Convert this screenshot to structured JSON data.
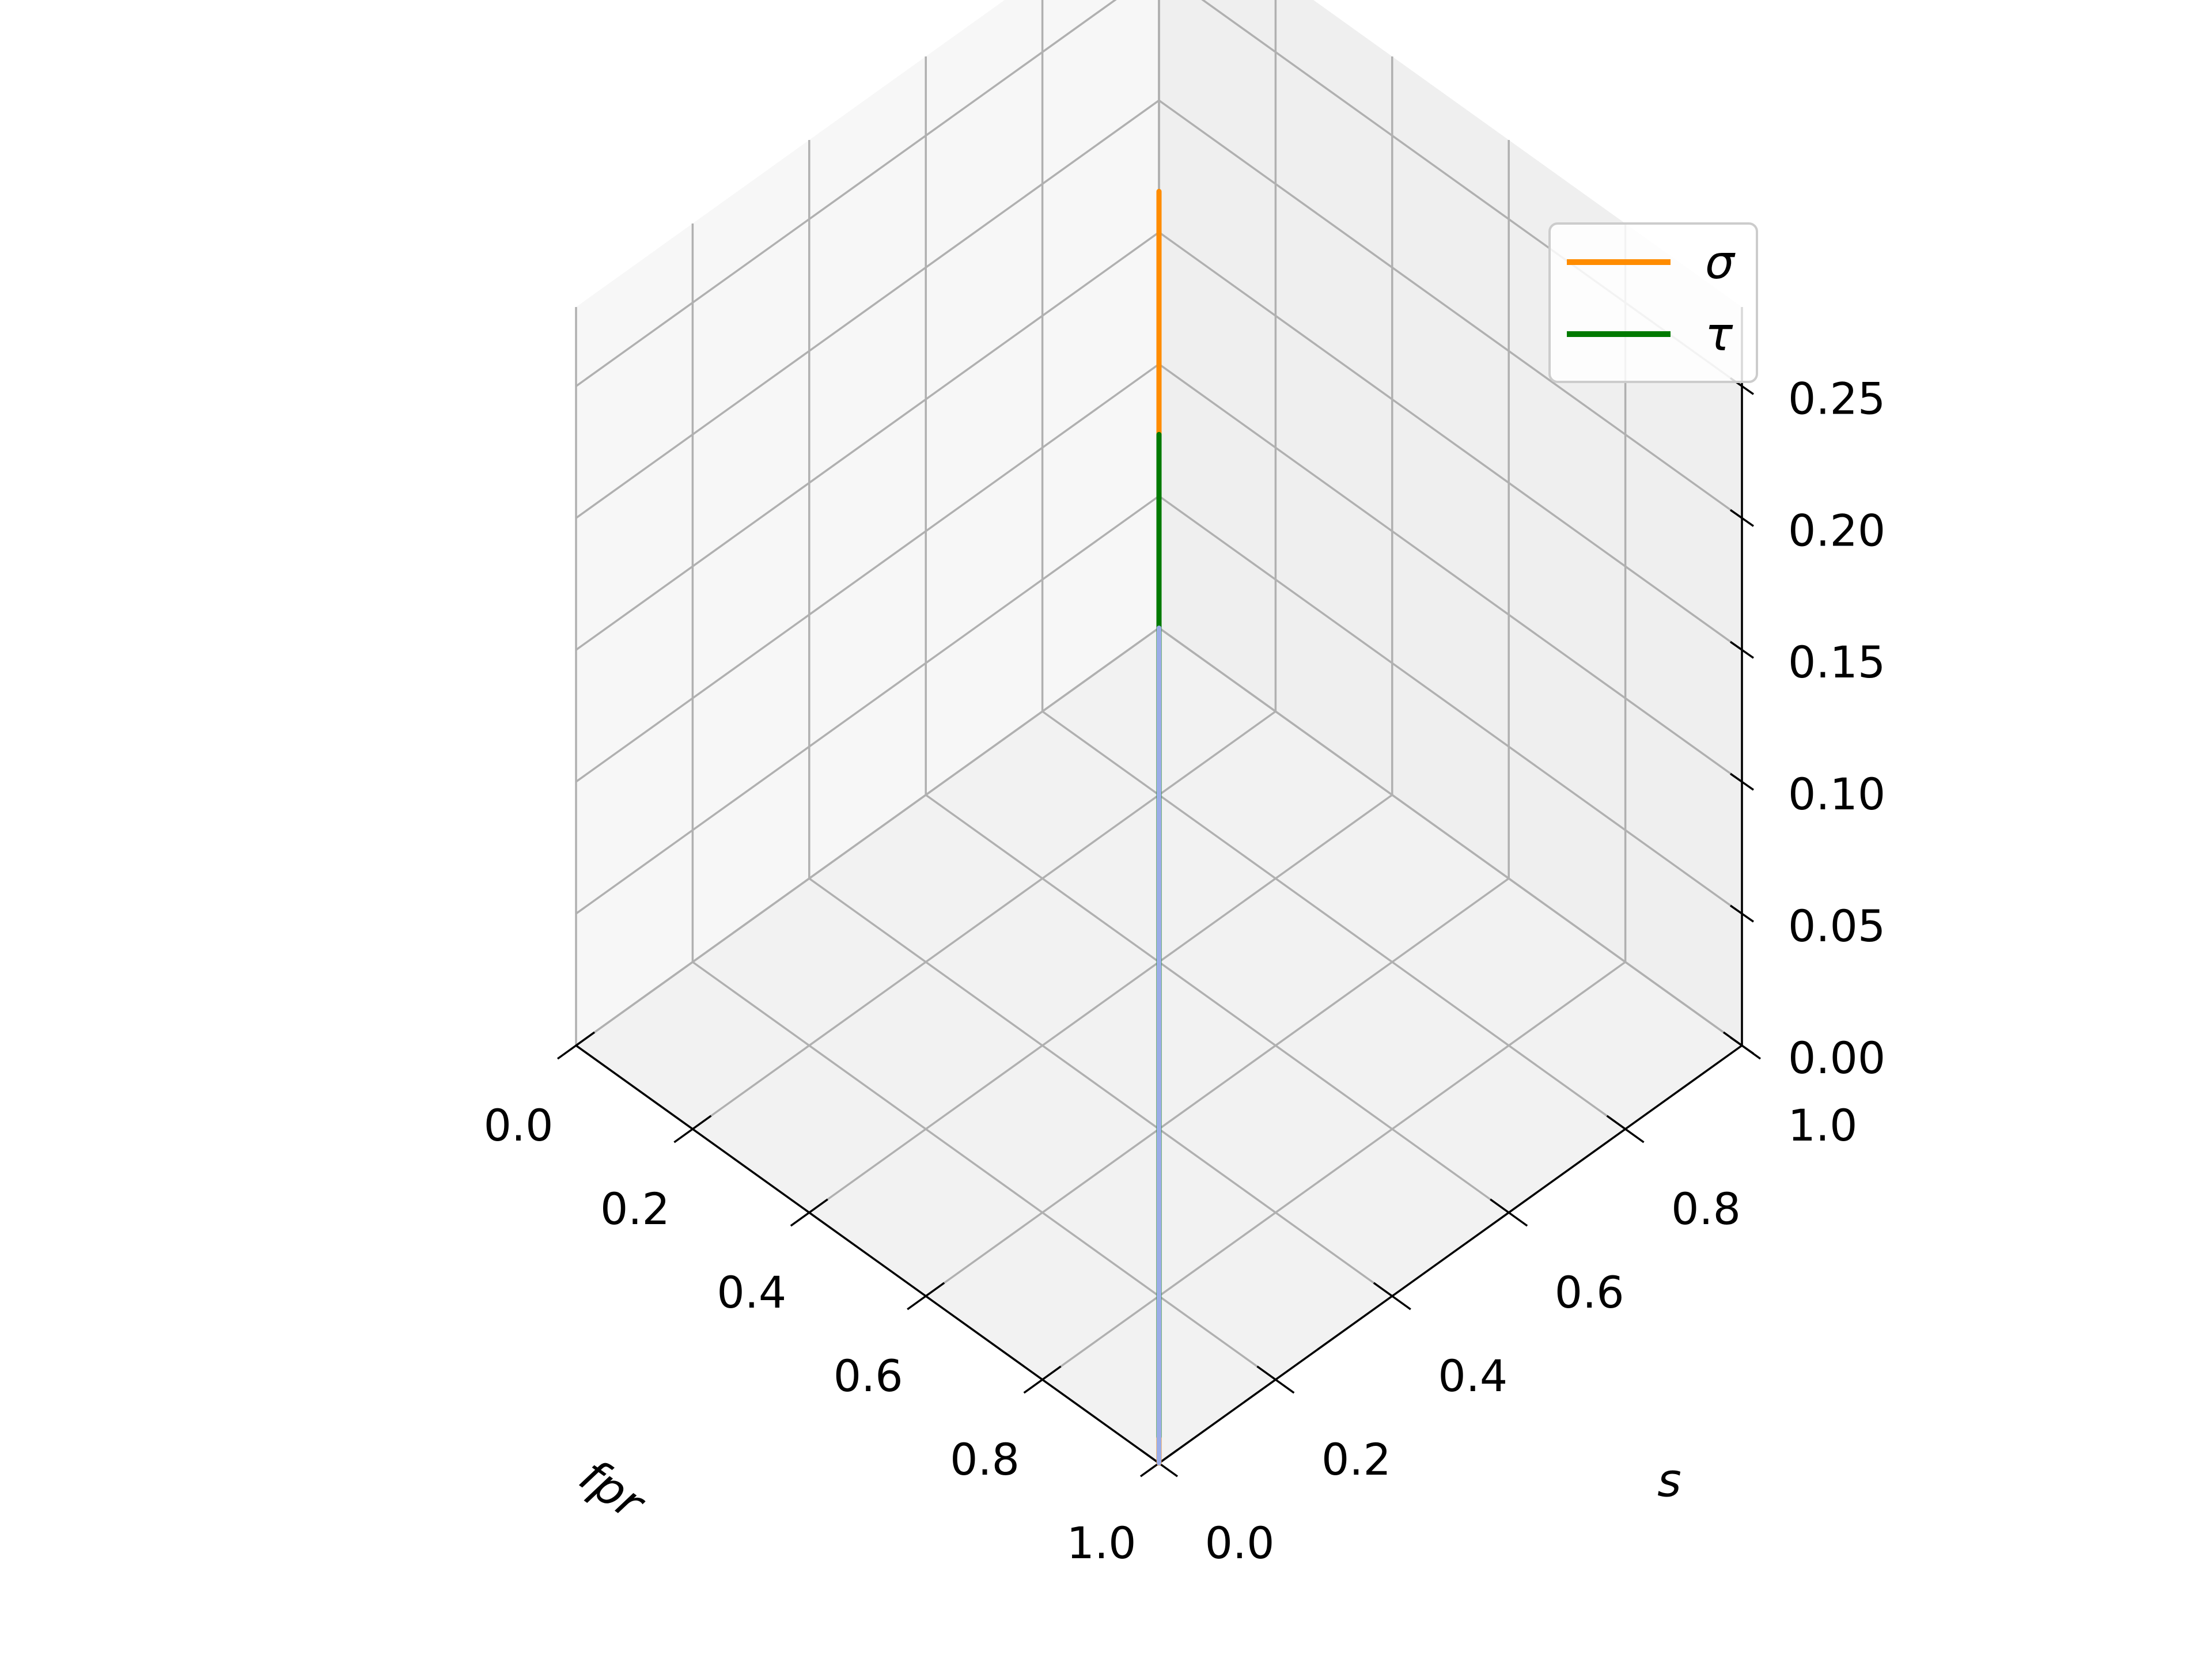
{
  "chart_data": {
    "type": "line",
    "projection": "3d",
    "title": "",
    "xlabel": "fpr",
    "ylabel": "s",
    "zlabel": "",
    "xlim": [
      0,
      1
    ],
    "ylim": [
      0,
      1
    ],
    "zlim": [
      0,
      0.28
    ],
    "x_ticks": [
      "0.0",
      "0.2",
      "0.4",
      "0.6",
      "0.8",
      "1.0"
    ],
    "y_ticks": [
      "0.0",
      "0.2",
      "0.4",
      "0.6",
      "0.8",
      "1.0"
    ],
    "z_ticks": [
      "0.00",
      "0.05",
      "0.10",
      "0.15",
      "0.20",
      "0.25"
    ],
    "grid": true,
    "legend_position": "top-right",
    "series": [
      {
        "name": "σ",
        "color": "#ff8c00",
        "x": [
          0,
          0.003,
          0.01,
          0.015,
          0.02,
          0.025,
          0.03,
          0.05,
          0.07,
          0.09,
          0.11,
          0.13,
          0.15,
          0.17,
          0.19,
          0.21,
          0.23,
          0.25,
          0.27,
          0.29,
          0.31,
          0.33,
          0.35,
          0.37,
          0.39,
          0.41,
          0.43,
          0.45,
          0.47,
          0.49,
          0.51,
          0.53,
          0.55,
          0.57,
          0.59,
          0.61,
          0.63,
          0.65,
          0.67,
          0.69,
          0.71,
          0.73,
          0.75,
          0.77,
          0.79,
          0.81,
          0.83,
          0.85,
          0.87,
          0.89,
          0.91,
          0.93,
          0.95,
          0.97,
          0.99,
          1
        ],
        "y": [
          1,
          0.997,
          0.99,
          0.985,
          0.98,
          0.975,
          0.97,
          0.95,
          0.93,
          0.91,
          0.89,
          0.87,
          0.85,
          0.83,
          0.81,
          0.79,
          0.77,
          0.75,
          0.73,
          0.71,
          0.69,
          0.67,
          0.65,
          0.63,
          0.61,
          0.59,
          0.57,
          0.55,
          0.53,
          0.51,
          0.49,
          0.47,
          0.45,
          0.43,
          0.41,
          0.39,
          0.37,
          0.35,
          0.33,
          0.31,
          0.29,
          0.27,
          0.25,
          0.23,
          0.21,
          0.19,
          0.17,
          0.15,
          0.13,
          0.11,
          0.09,
          0.07,
          0.05,
          0.03,
          0.01,
          0
        ],
        "z": [
          0,
          0.02,
          0.045,
          0.07,
          0.09,
          0.11,
          0.12,
          0.125,
          0.145,
          0.16,
          0.17,
          0.185,
          0.195,
          0.195,
          0.2,
          0.205,
          0.22,
          0.235,
          0.24,
          0.245,
          0.255,
          0.27,
          0.255,
          0.26,
          0.235,
          0.235,
          0.22,
          0.205,
          0.205,
          0.19,
          0.175,
          0.17,
          0.17,
          0.165,
          0.175,
          0.165,
          0.155,
          0.15,
          0.155,
          0.16,
          0.16,
          0.165,
          0.155,
          0.15,
          0.14,
          0.115,
          0.11,
          0.1,
          0.095,
          0.08,
          0.07,
          0.06,
          0.035,
          0.025,
          0.01,
          0
        ]
      },
      {
        "name": "τ",
        "color": "#007a00",
        "x": [
          0,
          0.02,
          0.04,
          0.06,
          0.08,
          0.1,
          0.12,
          0.14,
          0.16,
          0.18,
          0.2,
          0.22,
          0.24,
          0.26,
          0.28,
          0.3,
          0.32,
          0.34,
          0.36,
          0.38,
          0.4,
          0.42,
          0.44,
          0.46,
          0.48,
          0.5,
          0.52,
          0.54,
          0.56,
          0.58,
          0.6,
          0.62,
          0.64,
          0.66,
          0.68,
          0.7,
          0.72,
          0.74,
          0.76,
          0.78,
          0.8,
          0.82,
          0.84,
          0.86,
          0.88,
          0.9,
          0.92,
          0.94,
          0.96,
          0.97,
          0.98,
          0.985,
          0.99,
          0.995,
          1
        ],
        "y": [
          1,
          0.98,
          0.96,
          0.94,
          0.92,
          0.9,
          0.88,
          0.86,
          0.84,
          0.82,
          0.8,
          0.78,
          0.76,
          0.74,
          0.72,
          0.7,
          0.68,
          0.66,
          0.64,
          0.62,
          0.6,
          0.58,
          0.56,
          0.54,
          0.52,
          0.5,
          0.48,
          0.46,
          0.44,
          0.42,
          0.4,
          0.38,
          0.36,
          0.34,
          0.32,
          0.3,
          0.28,
          0.26,
          0.24,
          0.22,
          0.2,
          0.18,
          0.16,
          0.14,
          0.12,
          0.1,
          0.08,
          0.06,
          0.04,
          0.03,
          0.02,
          0.015,
          0.01,
          0.005,
          0
        ],
        "z": [
          0,
          0.01,
          0.02,
          0.025,
          0.035,
          0.04,
          0.055,
          0.07,
          0.075,
          0.08,
          0.09,
          0.1,
          0.11,
          0.125,
          0.14,
          0.15,
          0.165,
          0.175,
          0.185,
          0.185,
          0.2,
          0.2,
          0.205,
          0.195,
          0.2,
          0.19,
          0.2,
          0.18,
          0.185,
          0.19,
          0.2,
          0.21,
          0.225,
          0.22,
          0.225,
          0.235,
          0.24,
          0.245,
          0.24,
          0.25,
          0.255,
          0.25,
          0.26,
          0.25,
          0.25,
          0.245,
          0.24,
          0.23,
          0.17,
          0.14,
          0.12,
          0.08,
          0.05,
          0.02,
          0.01
        ]
      },
      {
        "color": "#9bade8",
        "x": [
          0,
          0.05,
          0.1,
          0.15,
          0.2,
          0.25,
          0.3,
          0.35,
          0.4,
          0.45,
          0.5,
          0.55,
          0.6,
          0.65,
          0.7,
          0.75,
          0.8,
          0.85,
          0.9,
          0.95,
          1
        ],
        "y": [
          1,
          0.95,
          0.9,
          0.85,
          0.8,
          0.75,
          0.7,
          0.65,
          0.6,
          0.55,
          0.5,
          0.45,
          0.4,
          0.35,
          0.3,
          0.25,
          0.2,
          0.15,
          0.1,
          0.05,
          0
        ],
        "z": [
          0,
          0,
          0,
          0,
          0,
          0,
          0,
          0,
          0,
          0,
          0,
          0,
          0,
          0,
          0,
          0,
          0,
          0,
          0,
          0,
          0
        ],
        "floor_offset": [
          0,
          0.07,
          0.12,
          0.165,
          0.2,
          0.225,
          0.24,
          0.25,
          0.255,
          0.255,
          0.25,
          0.24,
          0.225,
          0.2,
          0.18,
          0.15,
          0.13,
          0.1,
          0.07,
          0.035,
          0
        ]
      }
    ]
  }
}
